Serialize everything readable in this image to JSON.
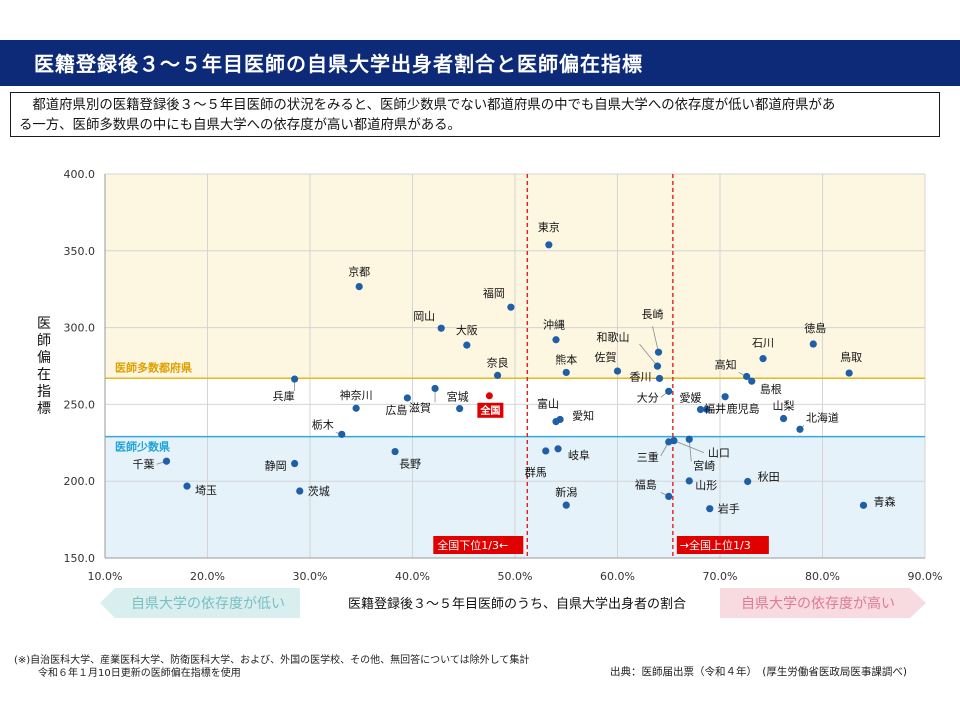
{
  "header": {
    "title": "医籍登録後３～５年目医師の自県大学出身者割合と医師偏在指標"
  },
  "summary": {
    "line1": "　都道府県別の医籍登録後３～５年目医師の状況をみると、医師少数県でない都道府県の中でも自県大学への依存度が低い都道府県があ",
    "line2": "る一方、医師多数県の中にも自県大学への依存度が高い都道府県がある。"
  },
  "colors": {
    "title_bg": "#0c2a78",
    "upper_band": "#fdf6e1",
    "lower_band": "#e5f2fa",
    "majority_line": "#e8b820",
    "minority_line": "#33a9d8",
    "threshold_line": "#e02020",
    "point": "#1f5fa8",
    "national_point": "#e00000",
    "arrow_left": "#d9efef",
    "arrow_right": "#f7dbe1"
  },
  "chart_data": {
    "type": "scatter",
    "xlabel": "医籍登録後３～５年目医師のうち、自県大学出身者の割合",
    "ylabel": "医師偏在指標",
    "xlim": [
      10.0,
      90.0
    ],
    "ylim": [
      150.0,
      400.0
    ],
    "x_ticks": [
      "10.0%",
      "20.0%",
      "30.0%",
      "40.0%",
      "50.0%",
      "60.0%",
      "70.0%",
      "80.0%",
      "90.0%"
    ],
    "y_ticks": [
      "150.0",
      "200.0",
      "250.0",
      "300.0",
      "350.0",
      "400.0"
    ],
    "grid": true,
    "thresholds": {
      "majority_y": 267,
      "majority_label": "医師多数都府県",
      "minority_y": 229,
      "minority_label": "医師少数県",
      "lower_third_x": 51.2,
      "lower_third_label": "全国下位1/3←",
      "upper_third_x": 65.4,
      "upper_third_label": "→全国上位1/3"
    },
    "points": [
      {
        "name": "東京",
        "x": 53.3,
        "y": 353.9
      },
      {
        "name": "京都",
        "x": 34.8,
        "y": 326.7
      },
      {
        "name": "福岡",
        "x": 49.6,
        "y": 313.3
      },
      {
        "name": "岡山",
        "x": 42.8,
        "y": 299.6
      },
      {
        "name": "大阪",
        "x": 45.3,
        "y": 288.6
      },
      {
        "name": "沖縄",
        "x": 54.0,
        "y": 292.1
      },
      {
        "name": "和歌山",
        "x": 63.9,
        "y": 274.9
      },
      {
        "name": "長崎",
        "x": 64.0,
        "y": 284.0
      },
      {
        "name": "佐賀",
        "x": 60.0,
        "y": 271.7
      },
      {
        "name": "熊本",
        "x": 55.0,
        "y": 270.8
      },
      {
        "name": "香川",
        "x": 64.1,
        "y": 266.9
      },
      {
        "name": "奈良",
        "x": 48.3,
        "y": 268.9
      },
      {
        "name": "徳島",
        "x": 79.1,
        "y": 289.3
      },
      {
        "name": "石川",
        "x": 74.2,
        "y": 279.8
      },
      {
        "name": "高知",
        "x": 72.6,
        "y": 268.2
      },
      {
        "name": "鳥取",
        "x": 82.6,
        "y": 270.4
      },
      {
        "name": "島根",
        "x": 73.1,
        "y": 265.1
      },
      {
        "name": "兵庫",
        "x": 28.5,
        "y": 266.5
      },
      {
        "name": "神奈川",
        "x": 34.5,
        "y": 247.5
      },
      {
        "name": "滋賀",
        "x": 42.2,
        "y": 260.4
      },
      {
        "name": "広島",
        "x": 39.5,
        "y": 254.2
      },
      {
        "name": "宮城",
        "x": 44.6,
        "y": 247.3
      },
      {
        "name": "全国",
        "x": 47.5,
        "y": 255.6
      },
      {
        "name": "大分",
        "x": 65.0,
        "y": 258.5
      },
      {
        "name": "富山",
        "x": 54.0,
        "y": 238.8
      },
      {
        "name": "愛知",
        "x": 54.4,
        "y": 240.2
      },
      {
        "name": "愛媛",
        "x": 68.1,
        "y": 246.7
      },
      {
        "name": "鹿児島",
        "x": 68.7,
        "y": 246.8
      },
      {
        "name": "福井",
        "x": 70.5,
        "y": 255.0
      },
      {
        "name": "山梨",
        "x": 76.2,
        "y": 240.8
      },
      {
        "name": "北海道",
        "x": 77.8,
        "y": 233.8
      },
      {
        "name": "栃木",
        "x": 33.1,
        "y": 230.5
      },
      {
        "name": "長野",
        "x": 38.3,
        "y": 219.3
      },
      {
        "name": "岐阜",
        "x": 54.2,
        "y": 221.1
      },
      {
        "name": "群馬",
        "x": 53.0,
        "y": 219.7
      },
      {
        "name": "三重",
        "x": 65.0,
        "y": 225.6
      },
      {
        "name": "山口",
        "x": 65.5,
        "y": 226.4
      },
      {
        "name": "宮崎",
        "x": 67.0,
        "y": 227.3
      },
      {
        "name": "千葉",
        "x": 16.0,
        "y": 213.0
      },
      {
        "name": "静岡",
        "x": 28.5,
        "y": 211.5
      },
      {
        "name": "埼玉",
        "x": 18.0,
        "y": 196.8
      },
      {
        "name": "茨城",
        "x": 29.0,
        "y": 193.6
      },
      {
        "name": "新潟",
        "x": 55.0,
        "y": 184.4
      },
      {
        "name": "福島",
        "x": 65.0,
        "y": 190.1
      },
      {
        "name": "山形",
        "x": 67.0,
        "y": 200.2
      },
      {
        "name": "秋田",
        "x": 72.7,
        "y": 199.8
      },
      {
        "name": "岩手",
        "x": 69.0,
        "y": 182.1
      },
      {
        "name": "青森",
        "x": 84.0,
        "y": 184.3
      }
    ]
  },
  "arrows": {
    "left_label": "自県大学の依存度が低い",
    "right_label": "自県大学の依存度が高い"
  },
  "footnotes": {
    "line1": "(※)自治医科大学、産業医科大学、防衛医科大学、および、外国の医学校、その他、無回答については除外して集計",
    "line2": "令和６年１月10日更新の医師偏在指標を使用"
  },
  "source": "出典：医師届出票（令和４年）　(厚生労働省医政局医事課調べ)"
}
